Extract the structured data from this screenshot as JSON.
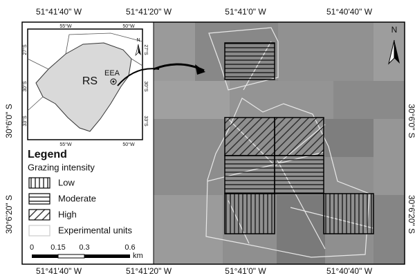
{
  "map": {
    "top_labels": [
      "51°41'40\" W",
      "51°41'20\" W",
      "51°41'0\" W",
      "51°40'40\" W"
    ],
    "bottom_labels": [
      "51°41'40\" W",
      "51°41'20\" W",
      "51°41'0\" W",
      "51°40'40\" W"
    ],
    "left_labels": [
      "30°6'0\" S",
      "30°6'20\" S"
    ],
    "right_labels": [
      "30°6'0\" S",
      "30°6'20\" S"
    ],
    "north": "N",
    "inset": {
      "top_labels": [
        "55°W",
        "50°W"
      ],
      "bottom_labels": [
        "55°W",
        "50°W"
      ],
      "left_labels": [
        "27°S",
        "30°S",
        "33°S"
      ],
      "right_labels": [
        "27°S",
        "30°S",
        "33°S"
      ],
      "state_label": "RS",
      "station_label": "EEA",
      "north": "N"
    },
    "legend": {
      "title": "Legend",
      "subtitle": "Grazing intensity",
      "items": [
        "Low",
        "Moderate",
        "High",
        "Experimental units"
      ]
    },
    "scale": {
      "labels": [
        "0",
        "0.15",
        "0.3",
        "0.6"
      ],
      "unit": "km"
    }
  }
}
